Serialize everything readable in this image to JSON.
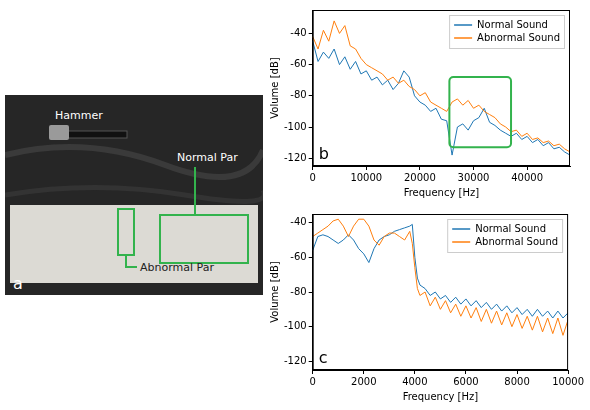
{
  "photo": {
    "panel_label": "a",
    "labels": {
      "hammer": "Hammer",
      "normal": "Normal Par",
      "abnormal": "Abnormal Par"
    }
  },
  "chart_data": [
    {
      "type": "line",
      "panel_label": "b",
      "x_label": "Frequency [Hz]",
      "y_label": "Volume [dB]",
      "x": [
        0,
        1000,
        2000,
        3000,
        4000,
        5000,
        6000,
        7000,
        8000,
        9000,
        10000,
        11000,
        12000,
        13000,
        14000,
        15000,
        16000,
        17000,
        18000,
        19000,
        20000,
        21000,
        22000,
        23000,
        24000,
        25000,
        26000,
        27000,
        28000,
        29000,
        30000,
        31000,
        32000,
        33000,
        34000,
        35000,
        36000,
        37000,
        38000,
        39000,
        40000,
        41000,
        42000,
        43000,
        44000,
        45000,
        46000,
        47000,
        48000
      ],
      "series": [
        {
          "name": "Normal Sound",
          "color": "#1f77b4",
          "values": [
            -45,
            -58,
            -52,
            -56,
            -50,
            -60,
            -55,
            -63,
            -58,
            -66,
            -64,
            -70,
            -68,
            -73,
            -70,
            -76,
            -72,
            -64,
            -68,
            -80,
            -84,
            -86,
            -90,
            -88,
            -95,
            -96,
            -118,
            -100,
            -98,
            -102,
            -96,
            -94,
            -88,
            -97,
            -99,
            -102,
            -104,
            -106,
            -104,
            -108,
            -106,
            -110,
            -108,
            -112,
            -110,
            -114,
            -113,
            -116,
            -118
          ]
        },
        {
          "name": "Abnormal Sound",
          "color": "#ff7f0e",
          "values": [
            -42,
            -50,
            -38,
            -45,
            -32,
            -40,
            -35,
            -48,
            -50,
            -56,
            -60,
            -62,
            -64,
            -66,
            -70,
            -68,
            -72,
            -70,
            -74,
            -76,
            -80,
            -78,
            -84,
            -86,
            -88,
            -90,
            -84,
            -82,
            -86,
            -83,
            -88,
            -86,
            -90,
            -92,
            -94,
            -98,
            -100,
            -103,
            -102,
            -106,
            -104,
            -108,
            -107,
            -110,
            -109,
            -112,
            -111,
            -114,
            -116
          ]
        }
      ],
      "xlim": [
        0,
        48000
      ],
      "xticks": [
        0,
        10000,
        20000,
        30000,
        40000
      ],
      "ylim": [
        -125,
        -25
      ],
      "yticks": [
        -120,
        -100,
        -80,
        -60,
        -40
      ],
      "grid": false,
      "legend": "upper right",
      "box": {
        "x": [
          25500,
          37000
        ],
        "y": [
          -113,
          -68
        ],
        "color": "#33b34d"
      }
    },
    {
      "type": "line",
      "panel_label": "c",
      "x_label": "Frequency [Hz]",
      "y_label": "Volume [dB]",
      "x": [
        0,
        200,
        400,
        600,
        800,
        1000,
        1200,
        1400,
        1600,
        1800,
        2000,
        2200,
        2400,
        2600,
        2800,
        3000,
        3200,
        3400,
        3600,
        3800,
        3900,
        4000,
        4100,
        4200,
        4400,
        4600,
        4800,
        5000,
        5200,
        5400,
        5600,
        5800,
        6000,
        6200,
        6400,
        6600,
        6800,
        7000,
        7200,
        7400,
        7600,
        7800,
        8000,
        8200,
        8400,
        8600,
        8800,
        9000,
        9200,
        9400,
        9600,
        9800,
        10000
      ],
      "series": [
        {
          "name": "Normal Sound",
          "color": "#1f77b4",
          "values": [
            -56,
            -48,
            -47,
            -48,
            -50,
            -52,
            -50,
            -47,
            -50,
            -55,
            -58,
            -63,
            -55,
            -50,
            -48,
            -47,
            -45,
            -44,
            -43,
            -42,
            -41,
            -60,
            -72,
            -76,
            -78,
            -82,
            -80,
            -84,
            -82,
            -86,
            -83,
            -87,
            -84,
            -88,
            -85,
            -89,
            -86,
            -90,
            -87,
            -91,
            -88,
            -92,
            -89,
            -93,
            -90,
            -94,
            -90,
            -94,
            -91,
            -95,
            -91,
            -95,
            -92
          ]
        },
        {
          "name": "Abnormal Sound",
          "color": "#ff7f0e",
          "values": [
            -48,
            -46,
            -44,
            -42,
            -39,
            -38,
            -42,
            -48,
            -42,
            -38,
            -38,
            -42,
            -50,
            -53,
            -48,
            -46,
            -46,
            -48,
            -50,
            -45,
            -52,
            -66,
            -78,
            -82,
            -80,
            -88,
            -83,
            -90,
            -85,
            -92,
            -87,
            -94,
            -88,
            -95,
            -89,
            -97,
            -90,
            -98,
            -91,
            -99,
            -92,
            -100,
            -93,
            -101,
            -94,
            -102,
            -94,
            -103,
            -95,
            -104,
            -95,
            -105,
            -96
          ]
        }
      ],
      "xlim": [
        0,
        10000
      ],
      "xticks": [
        0,
        2000,
        4000,
        6000,
        8000,
        10000
      ],
      "ylim": [
        -125,
        -35
      ],
      "yticks": [
        -120,
        -100,
        -80,
        -60,
        -40
      ],
      "grid": false,
      "legend": "upper right"
    }
  ]
}
